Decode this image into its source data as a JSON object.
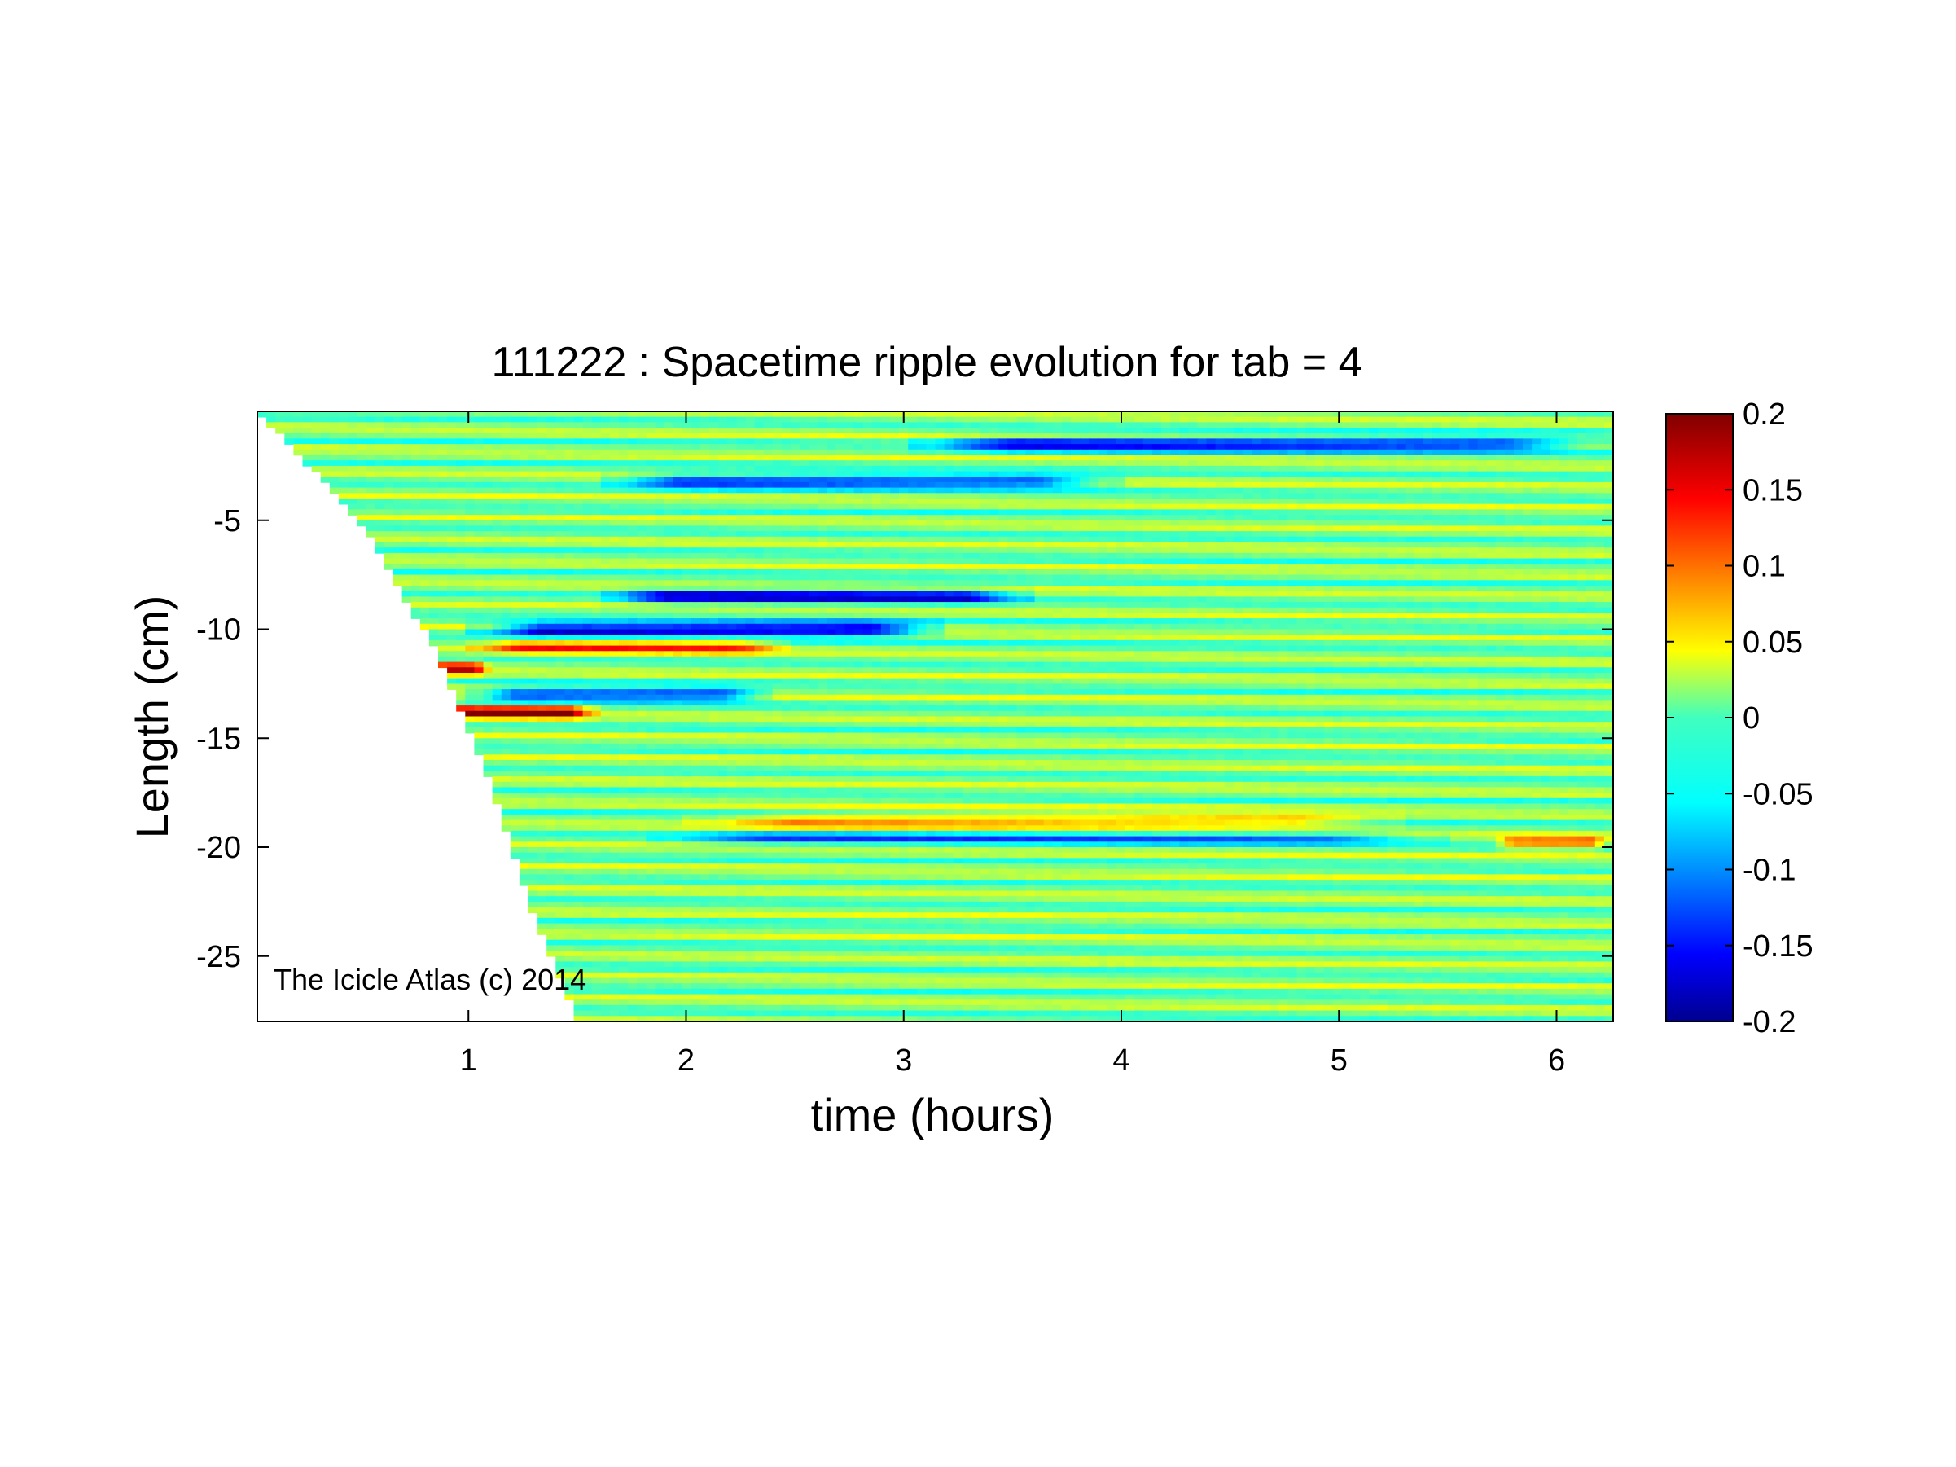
{
  "chart_data": {
    "type": "heatmap",
    "title": "111222 : Spacetime ripple evolution for tab = 4",
    "xlabel": "time (hours)",
    "ylabel": "Length (cm)",
    "xlim": [
      0.03,
      6.26
    ],
    "ylim": [
      -28,
      0
    ],
    "x_ticks": [
      1,
      2,
      3,
      4,
      5,
      6
    ],
    "y_ticks": [
      -5,
      -10,
      -15,
      -20,
      -25
    ],
    "x_tick_labels": [
      "1",
      "2",
      "3",
      "4",
      "5",
      "6"
    ],
    "y_tick_labels": [
      "-5",
      "-10",
      "-15",
      "-20",
      "-25"
    ],
    "colorbar": {
      "colormap": "jet",
      "clim": [
        -0.2,
        0.2
      ],
      "ticks": [
        0.2,
        0.15,
        0.1,
        0.05,
        0,
        -0.05,
        -0.1,
        -0.15,
        -0.2
      ],
      "tick_labels": [
        "0.2",
        "0.15",
        "0.1",
        "0.05",
        "0",
        "-0.05",
        "-0.1",
        "-0.15",
        "-0.2"
      ]
    },
    "growth_front": [
      [
        0.03,
        0
      ],
      [
        0.5,
        -5
      ],
      [
        0.85,
        -11
      ],
      [
        1.1,
        -17
      ],
      [
        1.3,
        -23
      ],
      [
        1.5,
        -28
      ]
    ],
    "features": [
      {
        "description": "strong negative band",
        "length": -1.5,
        "t_start": 3.0,
        "t_end": 6.26,
        "value": -0.16
      },
      {
        "description": "strong negative band",
        "length": -3.2,
        "t_start": 1.6,
        "t_end": 4.0,
        "value": -0.15
      },
      {
        "description": "strong negative band",
        "length": -8.5,
        "t_start": 1.6,
        "t_end": 3.6,
        "value": -0.16
      },
      {
        "description": "strong negative band",
        "length": -10.0,
        "t_start": 1.0,
        "t_end": 3.2,
        "value": -0.2
      },
      {
        "description": "strong positive band",
        "length": -10.8,
        "t_start": 1.0,
        "t_end": 2.5,
        "value": 0.12
      },
      {
        "description": "strong positive band",
        "length": -11.8,
        "t_start": 0.72,
        "t_end": 1.1,
        "value": 0.16
      },
      {
        "description": "strong negative band",
        "length": -13.0,
        "t_start": 1.0,
        "t_end": 2.4,
        "value": -0.15
      },
      {
        "description": "strong positive band",
        "length": -13.8,
        "t_start": 0.8,
        "t_end": 1.6,
        "value": 0.18
      },
      {
        "description": "positive band",
        "length": -18.8,
        "t_start": 2.0,
        "t_end": 5.3,
        "value": 0.1
      },
      {
        "description": "negative band",
        "length": -19.6,
        "t_start": 1.8,
        "t_end": 5.5,
        "value": -0.1
      },
      {
        "description": "positive band",
        "length": -19.8,
        "t_start": 5.7,
        "t_end": 6.26,
        "value": 0.12
      }
    ],
    "annotation": "The Icicle Atlas (c) 2014"
  }
}
